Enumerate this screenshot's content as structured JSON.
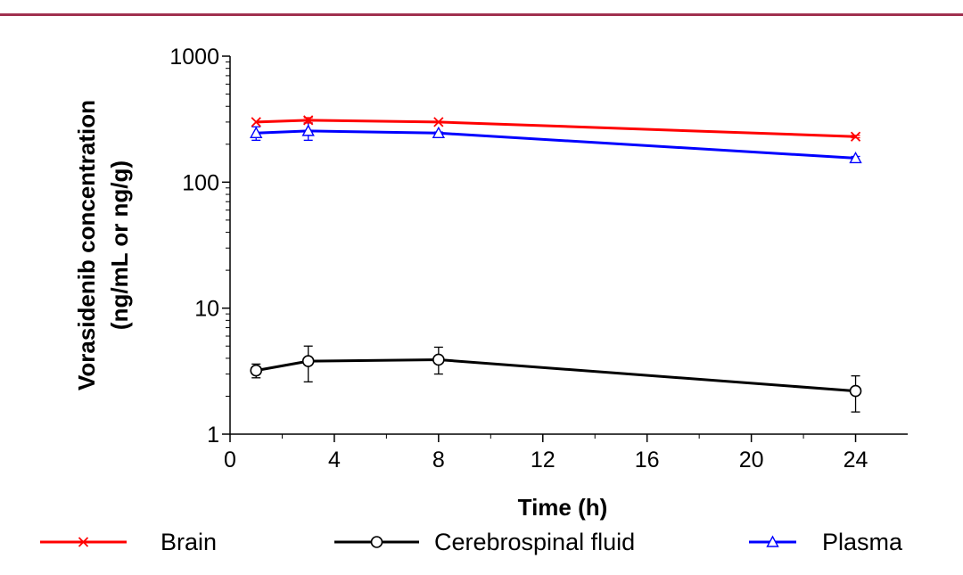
{
  "chart_data": {
    "type": "line",
    "title": "",
    "xlabel": "Time (h)",
    "ylabel_lines": [
      "Vorasidenib concentration",
      "(ng/mL or ng/g)"
    ],
    "y_scale": "log",
    "xlim": [
      0,
      26
    ],
    "ylim": [
      1,
      1000
    ],
    "x_ticks": [
      0,
      4,
      8,
      12,
      16,
      20,
      24
    ],
    "x_tick_labels": [
      "0",
      "4",
      "8",
      "12",
      "16",
      "20",
      "24"
    ],
    "y_ticks": [
      1,
      10,
      100,
      1000
    ],
    "y_tick_labels": [
      "1",
      "10",
      "100",
      "1000"
    ],
    "grid": false,
    "legend_position": "bottom",
    "series": [
      {
        "name": "Brain",
        "color": "#ff0000",
        "marker": "x",
        "x": [
          1,
          3,
          8,
          24
        ],
        "y": [
          300,
          310,
          300,
          230
        ],
        "err_low": [
          300,
          295,
          300,
          225
        ],
        "err_high": [
          300,
          325,
          300,
          235
        ]
      },
      {
        "name": "Cerebrospinal fluid",
        "color": "#000000",
        "marker": "circle",
        "x": [
          1,
          3,
          8,
          24
        ],
        "y": [
          3.2,
          3.8,
          3.9,
          2.2
        ],
        "err_low": [
          2.8,
          2.6,
          3.0,
          1.5
        ],
        "err_high": [
          3.6,
          5.0,
          4.9,
          2.9
        ]
      },
      {
        "name": "Plasma",
        "color": "#0000ff",
        "marker": "triangle",
        "x": [
          1,
          3,
          8,
          24
        ],
        "y": [
          245,
          255,
          245,
          155
        ],
        "err_low": [
          215,
          215,
          240,
          150
        ],
        "err_high": [
          275,
          295,
          250,
          160
        ]
      }
    ]
  }
}
